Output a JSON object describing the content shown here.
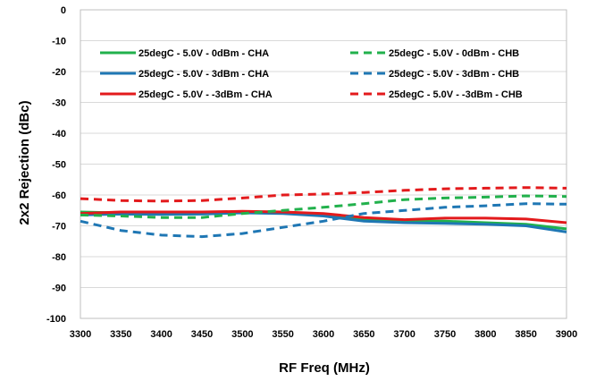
{
  "chart_data": {
    "type": "line",
    "title": "",
    "xlabel": "RF Freq (MHz)",
    "ylabel": "2x2 Rejection (dBc)",
    "xlim": [
      3300,
      3900
    ],
    "ylim": [
      -100,
      0
    ],
    "xticks": [
      3300,
      3350,
      3400,
      3450,
      3500,
      3550,
      3600,
      3650,
      3700,
      3750,
      3800,
      3850,
      3900
    ],
    "yticks": [
      0,
      -10,
      -20,
      -30,
      -40,
      -50,
      -60,
      -70,
      -80,
      -90,
      -100
    ],
    "grid": "horizontal",
    "legend_position": "top",
    "x": [
      3300,
      3350,
      3400,
      3450,
      3500,
      3550,
      3600,
      3650,
      3700,
      3750,
      3800,
      3850,
      3900
    ],
    "series": [
      {
        "name": "25degC - 5.0V - 0dBm - CHA",
        "color": "#22B14C",
        "dash": "solid",
        "values": [
          -65.5,
          -65.8,
          -66.0,
          -66.0,
          -65.6,
          -65.8,
          -66.5,
          -68.0,
          -68.5,
          -68.5,
          -69.0,
          -69.5,
          -71.0
        ]
      },
      {
        "name": "25degC - 5.0V - 3dBm - CHA",
        "color": "#1F77B4",
        "dash": "solid",
        "values": [
          -66.5,
          -66.2,
          -66.3,
          -66.2,
          -65.8,
          -66.0,
          -66.8,
          -68.5,
          -69.0,
          -69.2,
          -69.5,
          -70.0,
          -72.0
        ]
      },
      {
        "name": "25degC - 5.0V - -3dBm - CHA",
        "color": "#E31A1C",
        "dash": "solid",
        "values": [
          -66.0,
          -65.5,
          -65.5,
          -65.5,
          -65.3,
          -65.5,
          -66.0,
          -67.3,
          -68.0,
          -67.5,
          -67.5,
          -67.8,
          -69.0
        ]
      },
      {
        "name": "25degC - 5.0V - 0dBm - CHB",
        "color": "#22B14C",
        "dash": "dashed",
        "values": [
          -66.5,
          -66.8,
          -67.3,
          -67.3,
          -66.0,
          -65.0,
          -64.0,
          -62.8,
          -61.5,
          -61.0,
          -60.7,
          -60.3,
          -60.5
        ]
      },
      {
        "name": "25degC - 5.0V - 3dBm - CHB",
        "color": "#1F77B4",
        "dash": "dashed",
        "values": [
          -68.5,
          -71.5,
          -73.0,
          -73.5,
          -72.5,
          -70.5,
          -68.5,
          -66.0,
          -65.0,
          -64.0,
          -63.5,
          -62.8,
          -63.0
        ]
      },
      {
        "name": "25degC - 5.0V - -3dBm - CHB",
        "color": "#E31A1C",
        "dash": "dashed",
        "values": [
          -61.2,
          -61.8,
          -62.0,
          -61.8,
          -61.0,
          -60.0,
          -59.7,
          -59.2,
          -58.5,
          -58.0,
          -57.8,
          -57.6,
          -57.8
        ]
      }
    ]
  }
}
